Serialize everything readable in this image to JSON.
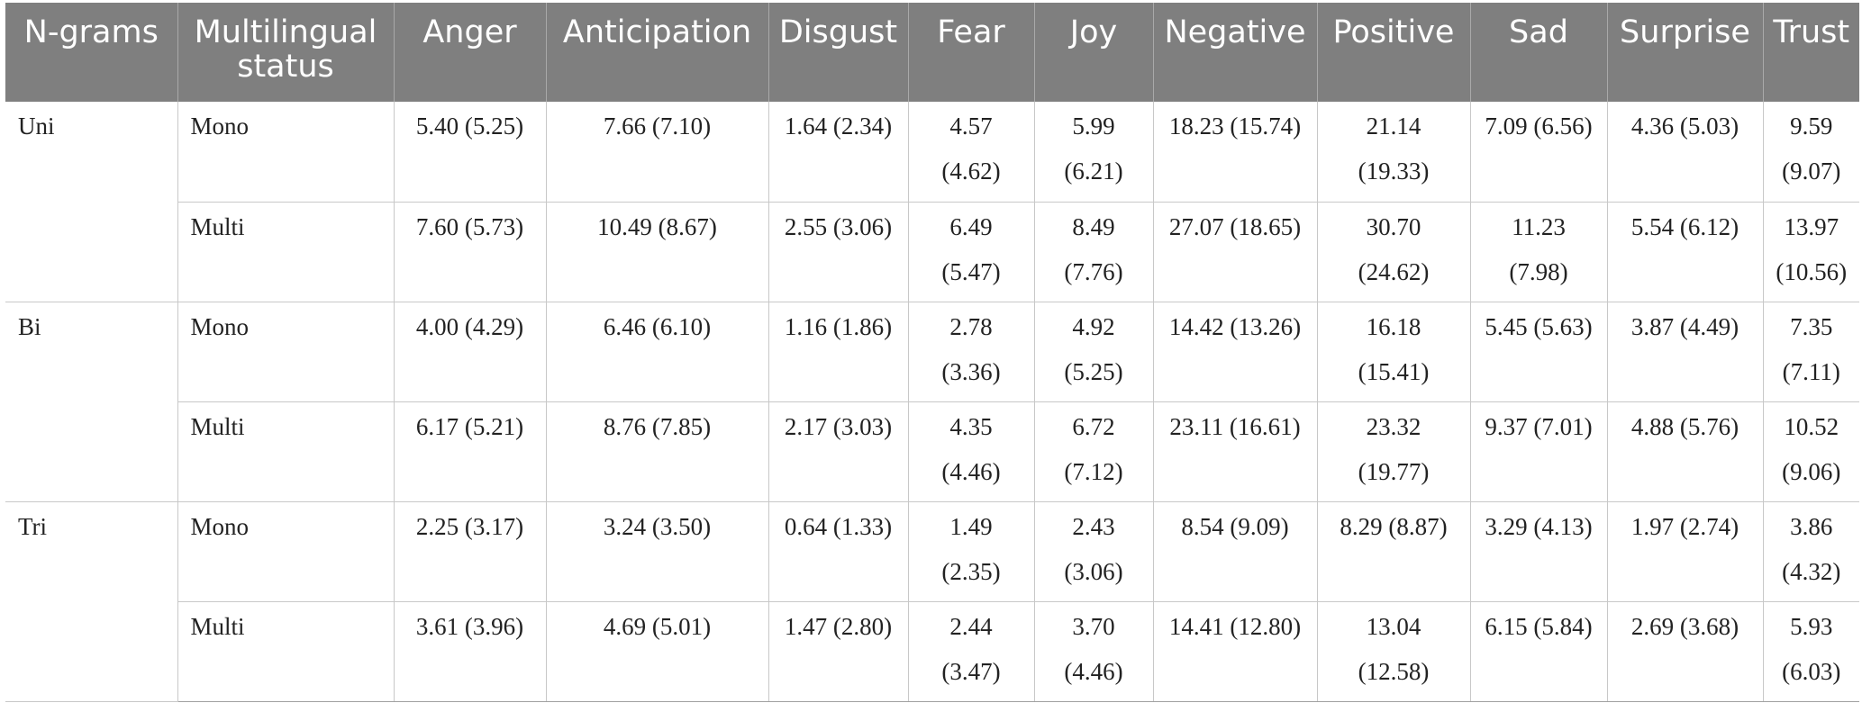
{
  "table": {
    "headers": [
      "N-grams",
      "Multilingual status",
      "Anger",
      "Anticipation",
      "Disgust",
      "Fear",
      "Joy",
      "Negative",
      "Positive",
      "Sad",
      "Surprise",
      "Trust"
    ],
    "groups": [
      {
        "ngram": "Uni",
        "rows": [
          {
            "status": "Mono",
            "cells": [
              "5.40 (5.25)",
              "7.66 (7.10)",
              "1.64 (2.34)",
              "4.57 (4.62)",
              "5.99 (6.21)",
              "18.23 (15.74)",
              "21.14 (19.33)",
              "7.09 (6.56)",
              "4.36 (5.03)",
              "9.59 (9.07)"
            ]
          },
          {
            "status": "Multi",
            "cells": [
              "7.60 (5.73)",
              "10.49 (8.67)",
              "2.55 (3.06)",
              "6.49 (5.47)",
              "8.49 (7.76)",
              "27.07 (18.65)",
              "30.70 (24.62)",
              "11.23 (7.98)",
              "5.54 (6.12)",
              "13.97 (10.56)"
            ]
          }
        ]
      },
      {
        "ngram": "Bi",
        "rows": [
          {
            "status": "Mono",
            "cells": [
              "4.00 (4.29)",
              "6.46 (6.10)",
              "1.16 (1.86)",
              "2.78 (3.36)",
              "4.92 (5.25)",
              "14.42 (13.26)",
              "16.18 (15.41)",
              "5.45 (5.63)",
              "3.87 (4.49)",
              "7.35 (7.11)"
            ]
          },
          {
            "status": "Multi",
            "cells": [
              "6.17 (5.21)",
              "8.76 (7.85)",
              "2.17 (3.03)",
              "4.35 (4.46)",
              "6.72 (7.12)",
              "23.11 (16.61)",
              "23.32 (19.77)",
              "9.37 (7.01)",
              "4.88 (5.76)",
              "10.52 (9.06)"
            ]
          }
        ]
      },
      {
        "ngram": "Tri",
        "rows": [
          {
            "status": "Mono",
            "cells": [
              "2.25 (3.17)",
              "3.24 (3.50)",
              "0.64 (1.33)",
              "1.49 (2.35)",
              "2.43 (3.06)",
              "8.54 (9.09)",
              "8.29 (8.87)",
              "3.29 (4.13)",
              "1.97 (2.74)",
              "3.86 (4.32)"
            ]
          },
          {
            "status": "Multi",
            "cells": [
              "3.61 (3.96)",
              "4.69 (5.01)",
              "1.47 (2.80)",
              "2.44 (3.47)",
              "3.70 (4.46)",
              "14.41 (12.80)",
              "13.04 (12.58)",
              "6.15 (5.84)",
              "2.69 (3.68)",
              "5.93 (6.03)"
            ]
          }
        ]
      }
    ]
  }
}
